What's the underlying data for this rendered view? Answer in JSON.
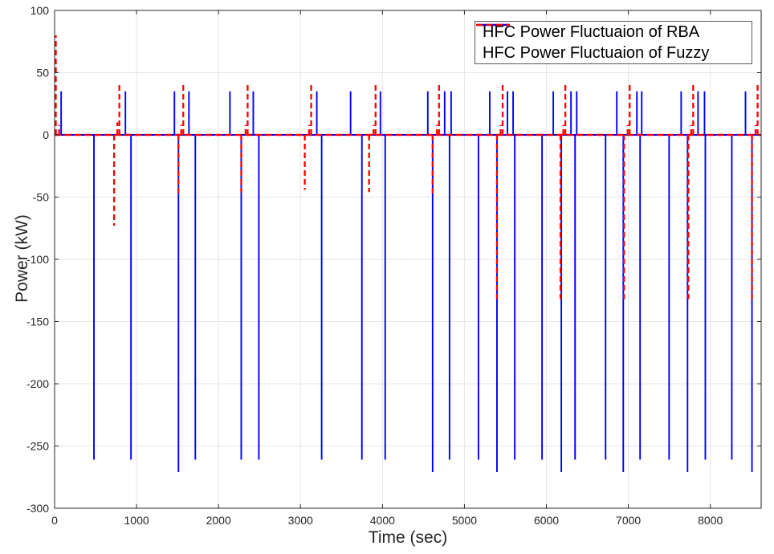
{
  "figure": {
    "xlabel": "Time (sec)",
    "ylabel": "Power (kW)"
  },
  "legend": {
    "position": "top-right-inside",
    "items": [
      {
        "label": "HFC Power Fluctuaion of RBA",
        "color": "#0000ff",
        "style": "solid"
      },
      {
        "label": "HFC Power Fluctuaion of Fuzzy",
        "color": "#ff0000",
        "style": "dashed"
      }
    ]
  },
  "colors": {
    "rba_line": "#0000ff",
    "fuzzy_line": "#ff0000",
    "axis": "#262626",
    "grid": "#e6e6e6",
    "background": "#ffffff"
  },
  "chart_data": {
    "type": "line",
    "title": "",
    "xlabel": "Time (sec)",
    "ylabel": "Power (kW)",
    "xlim": [
      0,
      8620
    ],
    "ylim": [
      -300,
      100
    ],
    "xticks": [
      0,
      1000,
      2000,
      3000,
      4000,
      5000,
      6000,
      7000,
      8000
    ],
    "yticks": [
      -300,
      -250,
      -200,
      -150,
      -100,
      -50,
      0,
      50,
      100
    ],
    "grid": true,
    "legend_position": "upper right",
    "baseline_value": 0,
    "series": [
      {
        "name": "HFC Power Fluctuaion of RBA",
        "color": "#0000ff",
        "style": "solid",
        "description": "signal rests at 0 kW with brief vertical spikes [time_sec, peak_kW]",
        "spikes": [
          [
            80,
            35
          ],
          [
            480,
            -261
          ],
          [
            864,
            35
          ],
          [
            932,
            -261
          ],
          [
            1462,
            35
          ],
          [
            1511,
            -271
          ],
          [
            1639,
            35
          ],
          [
            1717,
            -261
          ],
          [
            2139,
            35
          ],
          [
            2277,
            -261
          ],
          [
            2424,
            35
          ],
          [
            2492,
            -261
          ],
          [
            3199,
            35
          ],
          [
            3258,
            -261
          ],
          [
            3611,
            35
          ],
          [
            3749,
            -261
          ],
          [
            3975,
            35
          ],
          [
            4033,
            -261
          ],
          [
            4553,
            35
          ],
          [
            4612,
            -271
          ],
          [
            4759,
            35
          ],
          [
            4818,
            -261
          ],
          [
            4838,
            35
          ],
          [
            5171,
            -261
          ],
          [
            5309,
            35
          ],
          [
            5397,
            -271
          ],
          [
            5525,
            35
          ],
          [
            5594,
            35
          ],
          [
            5614,
            -261
          ],
          [
            5947,
            -261
          ],
          [
            6084,
            35
          ],
          [
            6182,
            -271
          ],
          [
            6300,
            35
          ],
          [
            6350,
            -261
          ],
          [
            6370,
            35
          ],
          [
            6722,
            -261
          ],
          [
            6859,
            35
          ],
          [
            6938,
            -271
          ],
          [
            7104,
            35
          ],
          [
            7143,
            -261
          ],
          [
            7163,
            35
          ],
          [
            7497,
            -261
          ],
          [
            7644,
            35
          ],
          [
            7722,
            -271
          ],
          [
            7850,
            35
          ],
          [
            7929,
            35
          ],
          [
            7939,
            -261
          ],
          [
            8262,
            -261
          ],
          [
            8429,
            35
          ],
          [
            8508,
            -271
          ]
        ]
      },
      {
        "name": "HFC Power Fluctuaion of Fuzzy",
        "color": "#ff0000",
        "style": "dashed",
        "description": "signal rests at 0 kW with brief vertical spikes [time_sec, peak_kW]",
        "spikes": [
          [
            15,
            80
          ],
          [
            55,
            8
          ],
          [
            726,
            -73
          ],
          [
            765,
            10
          ],
          [
            790,
            40
          ],
          [
            1511,
            -48
          ],
          [
            1545,
            8
          ],
          [
            1570,
            40
          ],
          [
            2277,
            -46
          ],
          [
            2330,
            8
          ],
          [
            2355,
            40
          ],
          [
            3052,
            -44
          ],
          [
            3105,
            8
          ],
          [
            3130,
            40
          ],
          [
            3837,
            -46
          ],
          [
            3891,
            8
          ],
          [
            3916,
            40
          ],
          [
            4612,
            -47
          ],
          [
            4665,
            8
          ],
          [
            4690,
            40
          ],
          [
            5397,
            -132
          ],
          [
            5441,
            8
          ],
          [
            5466,
            40
          ],
          [
            6172,
            -132
          ],
          [
            6206,
            8
          ],
          [
            6231,
            40
          ],
          [
            6947,
            -132
          ],
          [
            6991,
            8
          ],
          [
            7016,
            40
          ],
          [
            7732,
            -132
          ],
          [
            7766,
            8
          ],
          [
            7791,
            40
          ],
          [
            8508,
            -132
          ],
          [
            8552,
            8
          ],
          [
            8577,
            40
          ]
        ]
      }
    ]
  }
}
